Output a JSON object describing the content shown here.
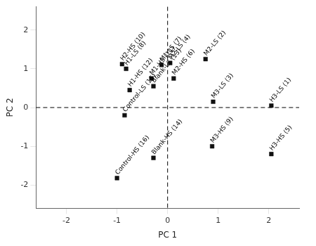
{
  "chart_data": {
    "type": "scatter",
    "xlabel": "PC 1",
    "ylabel": "PC 2",
    "x": [
      2.05,
      0.75,
      0.9,
      0.05,
      2.05,
      0.12,
      -0.12,
      -0.82,
      0.88,
      -0.9,
      -0.32,
      -0.75,
      -0.28,
      -0.28,
      -0.85,
      -1.0
    ],
    "values": [
      0.05,
      1.25,
      0.15,
      1.15,
      -1.2,
      0.75,
      1.1,
      1.0,
      -1.0,
      1.12,
      0.75,
      0.45,
      0.55,
      -1.3,
      -0.2,
      -1.82
    ],
    "point_labels": [
      "H3-LS (1)",
      "M2-LS (2)",
      "M3-LS (3)",
      "M2-LS (4)",
      "H3-HS (5)",
      "M2-HS (6)",
      "M1-LS (7)",
      "H1-LS (8)",
      "M3-HS (9)",
      "H2-HS (10)",
      "M1-HS (11)",
      "H1-HS (12)",
      "Blank-LS (13)",
      "Blank-HS (14)",
      "Control-LS (15)",
      "Control-HS (16)"
    ],
    "color": "#111111",
    "marker": "square",
    "reference_lines": {
      "x": [
        0
      ],
      "y": [
        0
      ]
    },
    "xlim": [
      -2.6,
      2.6
    ],
    "ylim": [
      -2.6,
      2.6
    ],
    "xticks": [
      -2,
      -1,
      0,
      1,
      2
    ],
    "yticks": [
      -2,
      -1,
      0,
      1,
      2
    ],
    "grid": false
  }
}
